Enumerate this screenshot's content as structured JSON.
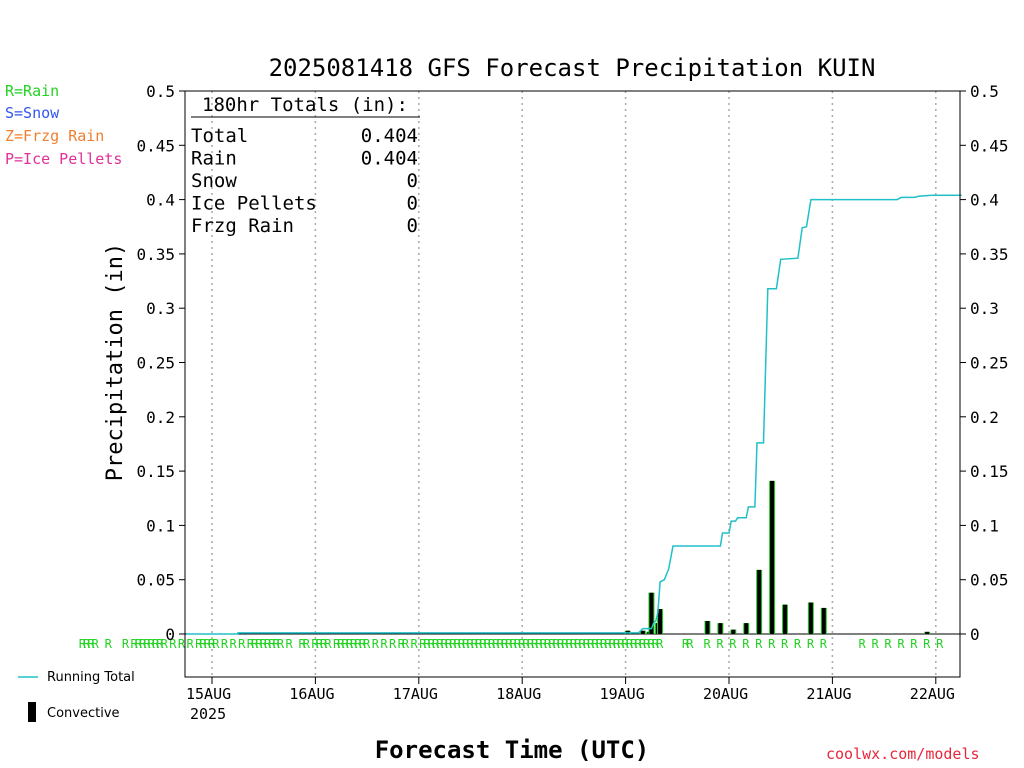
{
  "chart_data": {
    "type": "bar",
    "title": "2025081418 GFS Forecast Precipitation KUIN",
    "xlabel": "Forecast Time (UTC)",
    "ylabel": "Precipitation (in)",
    "ylim": [
      0,
      0.5
    ],
    "yticks": [
      "0",
      "0.05",
      "0.1",
      "0.15",
      "0.2",
      "0.25",
      "0.3",
      "0.35",
      "0.4",
      "0.45",
      "0.5"
    ],
    "x_axis_unit": "hours from 2025-08-14 18Z",
    "xlim_hours": [
      -24,
      196
    ],
    "xticks": [
      {
        "label": "15AUG",
        "sub": "2025",
        "hour": 6
      },
      {
        "label": "16AUG",
        "sub": "",
        "hour": 30
      },
      {
        "label": "17AUG",
        "sub": "",
        "hour": 54
      },
      {
        "label": "18AUG",
        "sub": "",
        "hour": 78
      },
      {
        "label": "19AUG",
        "sub": "",
        "hour": 102
      },
      {
        "label": "20AUG",
        "sub": "",
        "hour": 126
      },
      {
        "label": "21AUG",
        "sub": "",
        "hour": 150
      },
      {
        "label": "22AUG",
        "sub": "",
        "hour": 174
      }
    ],
    "totals_box": {
      "header": "180hr Totals (in):",
      "rows": [
        {
          "label": "Total",
          "value": "0.404"
        },
        {
          "label": "Rain",
          "value": "0.404"
        },
        {
          "label": "Snow",
          "value": "0"
        },
        {
          "label": "Ice Pellets",
          "value": "0"
        },
        {
          "label": "Frzg Rain",
          "value": "0"
        }
      ]
    },
    "series": [
      {
        "name": "Running Total",
        "color": "#20c0c8",
        "points": [
          [
            0,
            0
          ],
          [
            12,
            0
          ],
          [
            12,
            0.001
          ],
          [
            105,
            0.001
          ],
          [
            106,
            0.005
          ],
          [
            108,
            0.005
          ],
          [
            108.5,
            0.01
          ],
          [
            109,
            0.012
          ],
          [
            109.5,
            0.02
          ],
          [
            110,
            0.048
          ],
          [
            111,
            0.05
          ],
          [
            112,
            0.06
          ],
          [
            113,
            0.081
          ],
          [
            114,
            0.081
          ],
          [
            124,
            0.081
          ],
          [
            124.5,
            0.093
          ],
          [
            126,
            0.093
          ],
          [
            126.5,
            0.104
          ],
          [
            127.5,
            0.104
          ],
          [
            128,
            0.107
          ],
          [
            130,
            0.107
          ],
          [
            130.5,
            0.117
          ],
          [
            132,
            0.117
          ],
          [
            132.5,
            0.176
          ],
          [
            134,
            0.176
          ],
          [
            135,
            0.318
          ],
          [
            137,
            0.318
          ],
          [
            138,
            0.345
          ],
          [
            142,
            0.346
          ],
          [
            143,
            0.374
          ],
          [
            144,
            0.375
          ],
          [
            145,
            0.4
          ],
          [
            160,
            0.4
          ],
          [
            165,
            0.4
          ],
          [
            166,
            0.402
          ],
          [
            169,
            0.402
          ],
          [
            170,
            0.403
          ],
          [
            173,
            0.404
          ],
          [
            180,
            0.404
          ]
        ]
      },
      {
        "name": "Convective",
        "color": "#000000",
        "bars": [
          [
            102.5,
            0.003
          ],
          [
            106,
            0.003
          ],
          [
            107.5,
            0.002
          ],
          [
            108,
            0.038
          ],
          [
            109.5,
            0.01
          ],
          [
            110,
            0.023
          ],
          [
            121,
            0.012
          ],
          [
            124,
            0.01
          ],
          [
            127,
            0.004
          ],
          [
            130,
            0.01
          ],
          [
            133,
            0.059
          ],
          [
            136,
            0.141
          ],
          [
            139,
            0.027
          ],
          [
            145,
            0.029
          ],
          [
            148,
            0.024
          ],
          [
            172,
            0.002
          ]
        ],
        "total_bar_color": "#22d322"
      }
    ],
    "precip_type_marker": "R",
    "precip_type_marker_hours": [
      -24,
      -23,
      -22,
      -21,
      -18,
      -14,
      -12,
      -11,
      -10,
      -9,
      -8,
      -7,
      -6,
      -5,
      -3,
      -1,
      1,
      3,
      4,
      5,
      6,
      7,
      9,
      11,
      13,
      15,
      16,
      17,
      18,
      19,
      20,
      21,
      22,
      24,
      27,
      28,
      30,
      31,
      32,
      33,
      35,
      36,
      37,
      38,
      39,
      40,
      41,
      42,
      44,
      46,
      48,
      50,
      51,
      53,
      55,
      56,
      57,
      58,
      59,
      60,
      61,
      62,
      63,
      64,
      65,
      66,
      67,
      68,
      69,
      70,
      71,
      72,
      73,
      74,
      75,
      76,
      77,
      78,
      79,
      80,
      81,
      82,
      83,
      84,
      85,
      86,
      87,
      88,
      89,
      90,
      91,
      92,
      93,
      94,
      95,
      96,
      97,
      98,
      99,
      100,
      101,
      102,
      103,
      104,
      105,
      106,
      107,
      108,
      109,
      110,
      116,
      117,
      121,
      124,
      127,
      130,
      133,
      136,
      139,
      142,
      145,
      148,
      157,
      160,
      163,
      166,
      169,
      172,
      175
    ],
    "grid": "vertical-dotted-at-day-ticks",
    "legend_placement": "left-side"
  },
  "precip_key": [
    {
      "text": "R=Rain",
      "color": "#22d322"
    },
    {
      "text": "S=Snow",
      "color": "#3355ee"
    },
    {
      "text": "Z=Frzg Rain",
      "color": "#f08030"
    },
    {
      "text": "P=Ice Pellets",
      "color": "#e0309a"
    }
  ],
  "series_key": {
    "running_total": "Running Total",
    "convective": "Convective"
  },
  "credit": "coolwx.com/models"
}
